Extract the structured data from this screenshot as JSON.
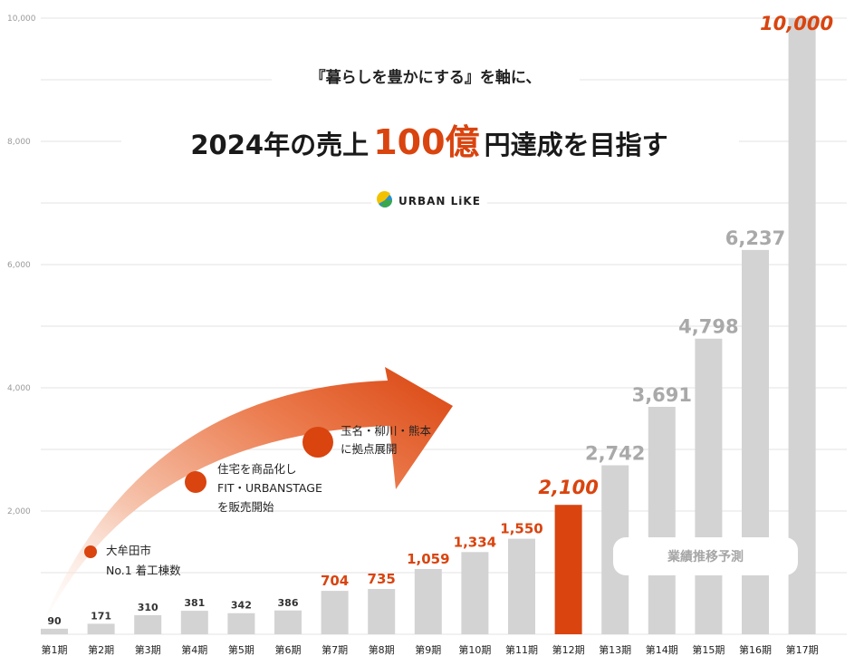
{
  "colors": {
    "accent": "#d9440f",
    "bar_gray": "#d3d3d3",
    "bar_highlight": "#d9440f",
    "grid": "#e3e3e3",
    "label_gray": "#a9a9a9",
    "label_dark": "#333333"
  },
  "headline": {
    "subtitle": "『暮らしを豊かにする』を軸に、",
    "main_prefix": "2024年の売上",
    "main_accent": "100億",
    "main_suffix": "円達成を目指す"
  },
  "brand": {
    "name": "URBAN LiKE",
    "icon": "urban-like-logo-icon"
  },
  "annotations": [
    {
      "lines": [
        "大牟田市",
        "No.1 着工棟数"
      ]
    },
    {
      "lines": [
        "住宅を商品化し",
        "FIT・URBANSTAGE",
        "を販売開始"
      ]
    },
    {
      "lines": [
        "玉名・柳川・熊本",
        "に拠点展開"
      ]
    }
  ],
  "forecast_label": "業績推移予測",
  "chart_data": {
    "type": "bar",
    "title": "",
    "xlabel": "",
    "ylabel": "",
    "ylim": [
      0,
      10000
    ],
    "yticks": [
      "2,000",
      "4,000",
      "6,000",
      "8,000",
      "10,000"
    ],
    "grid": true,
    "categories": [
      "第1期",
      "第2期",
      "第3期",
      "第4期",
      "第5期",
      "第6期",
      "第7期",
      "第8期",
      "第9期",
      "第10期",
      "第11期",
      "第12期",
      "第13期",
      "第14期",
      "第15期",
      "第16期",
      "第17期"
    ],
    "values": [
      90,
      171,
      310,
      381,
      342,
      386,
      704,
      735,
      1059,
      1334,
      1550,
      2100,
      2742,
      3691,
      4798,
      6237,
      10000
    ],
    "value_labels": [
      "90",
      "171",
      "310",
      "381",
      "342",
      "386",
      "704",
      "735",
      "1,059",
      "1,334",
      "1,550",
      "2,100",
      "2,742",
      "3,691",
      "4,798",
      "6,237",
      "10,000"
    ],
    "highlighted_category": "第12期",
    "forecast_categories": [
      "第13期",
      "第14期",
      "第15期",
      "第16期",
      "第17期"
    ]
  }
}
